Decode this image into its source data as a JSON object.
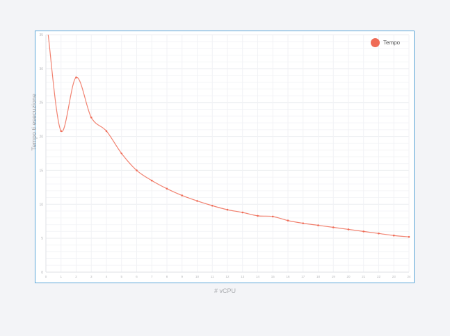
{
  "chart_data": {
    "type": "line",
    "xlabel": "# vCPU",
    "ylabel": "Tempo ti esecuzione",
    "x": [
      1,
      2,
      3,
      4,
      5,
      6,
      7,
      8,
      9,
      10,
      11,
      12,
      13,
      14,
      15,
      16,
      17,
      18,
      19,
      20,
      21,
      22,
      23,
      24
    ],
    "xlim": [
      0,
      24
    ],
    "ylim": [
      0,
      35
    ],
    "yticks": [
      0,
      5,
      10,
      15,
      20,
      25,
      30,
      35
    ],
    "xticks": [
      0,
      1,
      2,
      3,
      4,
      5,
      6,
      7,
      8,
      9,
      10,
      11,
      12,
      13,
      14,
      15,
      16,
      17,
      18,
      19,
      20,
      21,
      22,
      23,
      24
    ],
    "grid": true,
    "legend_position": "top-right",
    "series": [
      {
        "name": "Tempo",
        "color": "#ef6b56",
        "values": [
          20.8,
          28.7,
          22.8,
          20.8,
          17.5,
          15.0,
          13.5,
          12.3,
          11.3,
          10.5,
          9.8,
          9.2,
          8.8,
          8.3,
          8.2,
          7.6,
          7.2,
          6.9,
          6.6,
          6.3,
          6.0,
          5.7,
          5.4,
          5.2
        ]
      }
    ]
  }
}
